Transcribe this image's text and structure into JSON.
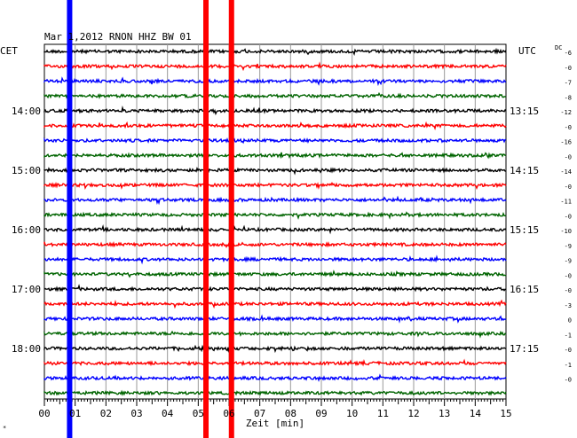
{
  "chart_data": {
    "type": "line",
    "title": "Mar 1,2012   RNON HHZ BW 01",
    "xlabel": "Zeit [min]",
    "left_axis_label": "CET",
    "right_axis_label": "UTC",
    "offset_column_label": "DC",
    "xlim": [
      0,
      15
    ],
    "x_ticks": [
      "00",
      "01",
      "02",
      "03",
      "04",
      "05",
      "06",
      "07",
      "08",
      "09",
      "10",
      "11",
      "12",
      "13",
      "14",
      "15"
    ],
    "trace_colors": [
      "#000000",
      "#ff0000",
      "#0000ff",
      "#006400"
    ],
    "left_ticks": [
      {
        "label": "14:00",
        "row": 4
      },
      {
        "label": "15:00",
        "row": 8
      },
      {
        "label": "16:00",
        "row": 12
      },
      {
        "label": "17:00",
        "row": 16
      },
      {
        "label": "18:00",
        "row": 20
      }
    ],
    "right_ticks": [
      {
        "label": "13:15",
        "row": 4
      },
      {
        "label": "14:15",
        "row": 8
      },
      {
        "label": "15:15",
        "row": 12
      },
      {
        "label": "16:15",
        "row": 16
      },
      {
        "label": "17:15",
        "row": 20
      }
    ],
    "dc_offsets": [
      "-6",
      "-0",
      "-7",
      "-8",
      "-12",
      "-0",
      "-16",
      "-0",
      "-14",
      "-0",
      "-11",
      "-0",
      "-10",
      "-9",
      "-9",
      "-0",
      "-0",
      "-3",
      "0",
      "-1",
      "-0",
      "-1",
      "-0"
    ],
    "trace_count": 24,
    "markers": [
      {
        "color": "#0000ff",
        "x_min": 0.82
      },
      {
        "color": "#ff0000",
        "x_min": 5.25
      },
      {
        "color": "#ff0000",
        "x_min": 6.08
      }
    ],
    "events": [
      {
        "row": 10,
        "x_min": 5.25,
        "amp": 14
      },
      {
        "row": 20,
        "x_min": 5.25,
        "amp": 18
      },
      {
        "row": 20,
        "x_min": 6.08,
        "amp": 12
      }
    ],
    "corner_mark": "*"
  }
}
